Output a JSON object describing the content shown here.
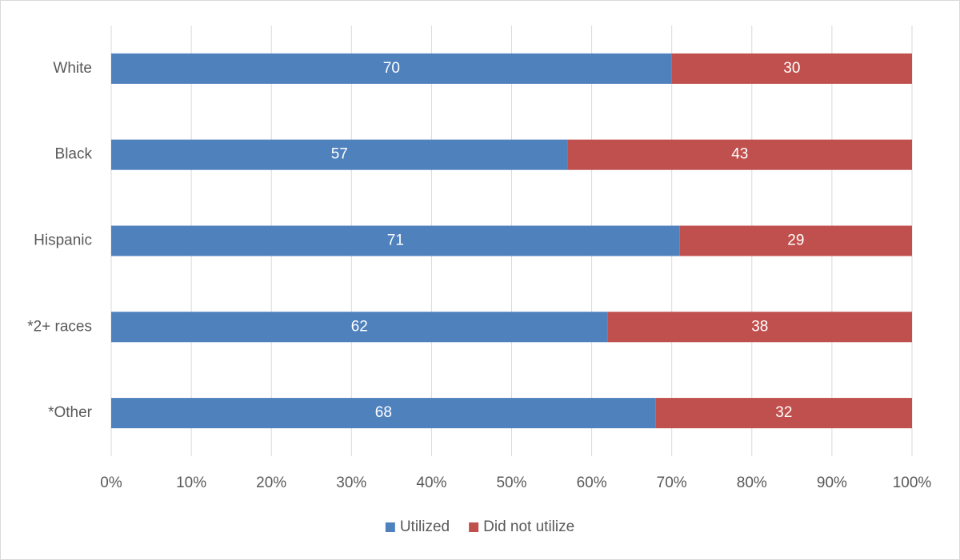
{
  "chart_data": {
    "type": "bar",
    "orientation": "horizontal",
    "stacked": true,
    "categories": [
      "White",
      "Black",
      "Hispanic",
      "*2+ races",
      "*Other"
    ],
    "series": [
      {
        "name": "Utilized",
        "color": "#4f81bd",
        "values": [
          70,
          57,
          71,
          62,
          68
        ]
      },
      {
        "name": "Did not utilize",
        "color": "#c0504d",
        "values": [
          30,
          43,
          29,
          38,
          32
        ]
      }
    ],
    "xlim": [
      0,
      100
    ],
    "xticks": [
      {
        "value": 0,
        "label": "0%"
      },
      {
        "value": 10,
        "label": "10%"
      },
      {
        "value": 20,
        "label": "20%"
      },
      {
        "value": 30,
        "label": "30%"
      },
      {
        "value": 40,
        "label": "40%"
      },
      {
        "value": 50,
        "label": "50%"
      },
      {
        "value": 60,
        "label": "60%"
      },
      {
        "value": 70,
        "label": "70%"
      },
      {
        "value": 80,
        "label": "80%"
      },
      {
        "value": 90,
        "label": "90%"
      },
      {
        "value": 100,
        "label": "100%"
      }
    ],
    "grid": true,
    "legend": "bottom"
  }
}
